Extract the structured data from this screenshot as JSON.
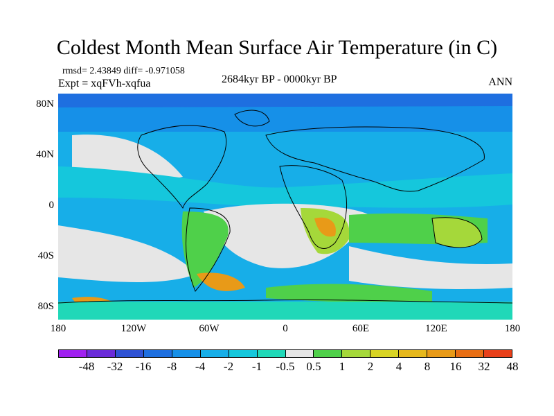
{
  "title": "Coldest Month Mean Surface Air Temperature (in C)",
  "stats": "rmsd= 2.43849 diff= -0.971058",
  "experiment": "Expt = xqFVh-xqfua",
  "period": "2684kyr BP - 0000kyr BP",
  "season": "ANN",
  "lat_labels": [
    "80N",
    "40N",
    "0",
    "40S",
    "80S"
  ],
  "lon_labels": [
    "180",
    "120W",
    "60W",
    "0",
    "60E",
    "120E",
    "180"
  ],
  "colorbar": {
    "labels": [
      "-48",
      "-32",
      "-16",
      "-8",
      "-4",
      "-2",
      "-1",
      "-0.5",
      "0.5",
      "1",
      "2",
      "4",
      "8",
      "16",
      "32",
      "48"
    ],
    "colors": [
      "#a020f0",
      "#6a2bd8",
      "#2f52d4",
      "#1e6fe0",
      "#1690e8",
      "#17aee8",
      "#15c7dc",
      "#20d8b8",
      "#e6e6e6",
      "#4fd04a",
      "#a5d83a",
      "#d8d424",
      "#e6b81c",
      "#e89a18",
      "#e86e14",
      "#e8401a"
    ]
  },
  "palette": {
    "deep_blue": "#1e6fe0",
    "blue": "#1690e8",
    "light_blue": "#17aee8",
    "cyan": "#15c7dc",
    "teal": "#20d8b8",
    "neutral": "#e6e6e6",
    "green": "#4fd04a",
    "yellow_green": "#a5d83a",
    "yellow": "#d8d424",
    "orange": "#e89a18",
    "land_outline": "#000000"
  }
}
